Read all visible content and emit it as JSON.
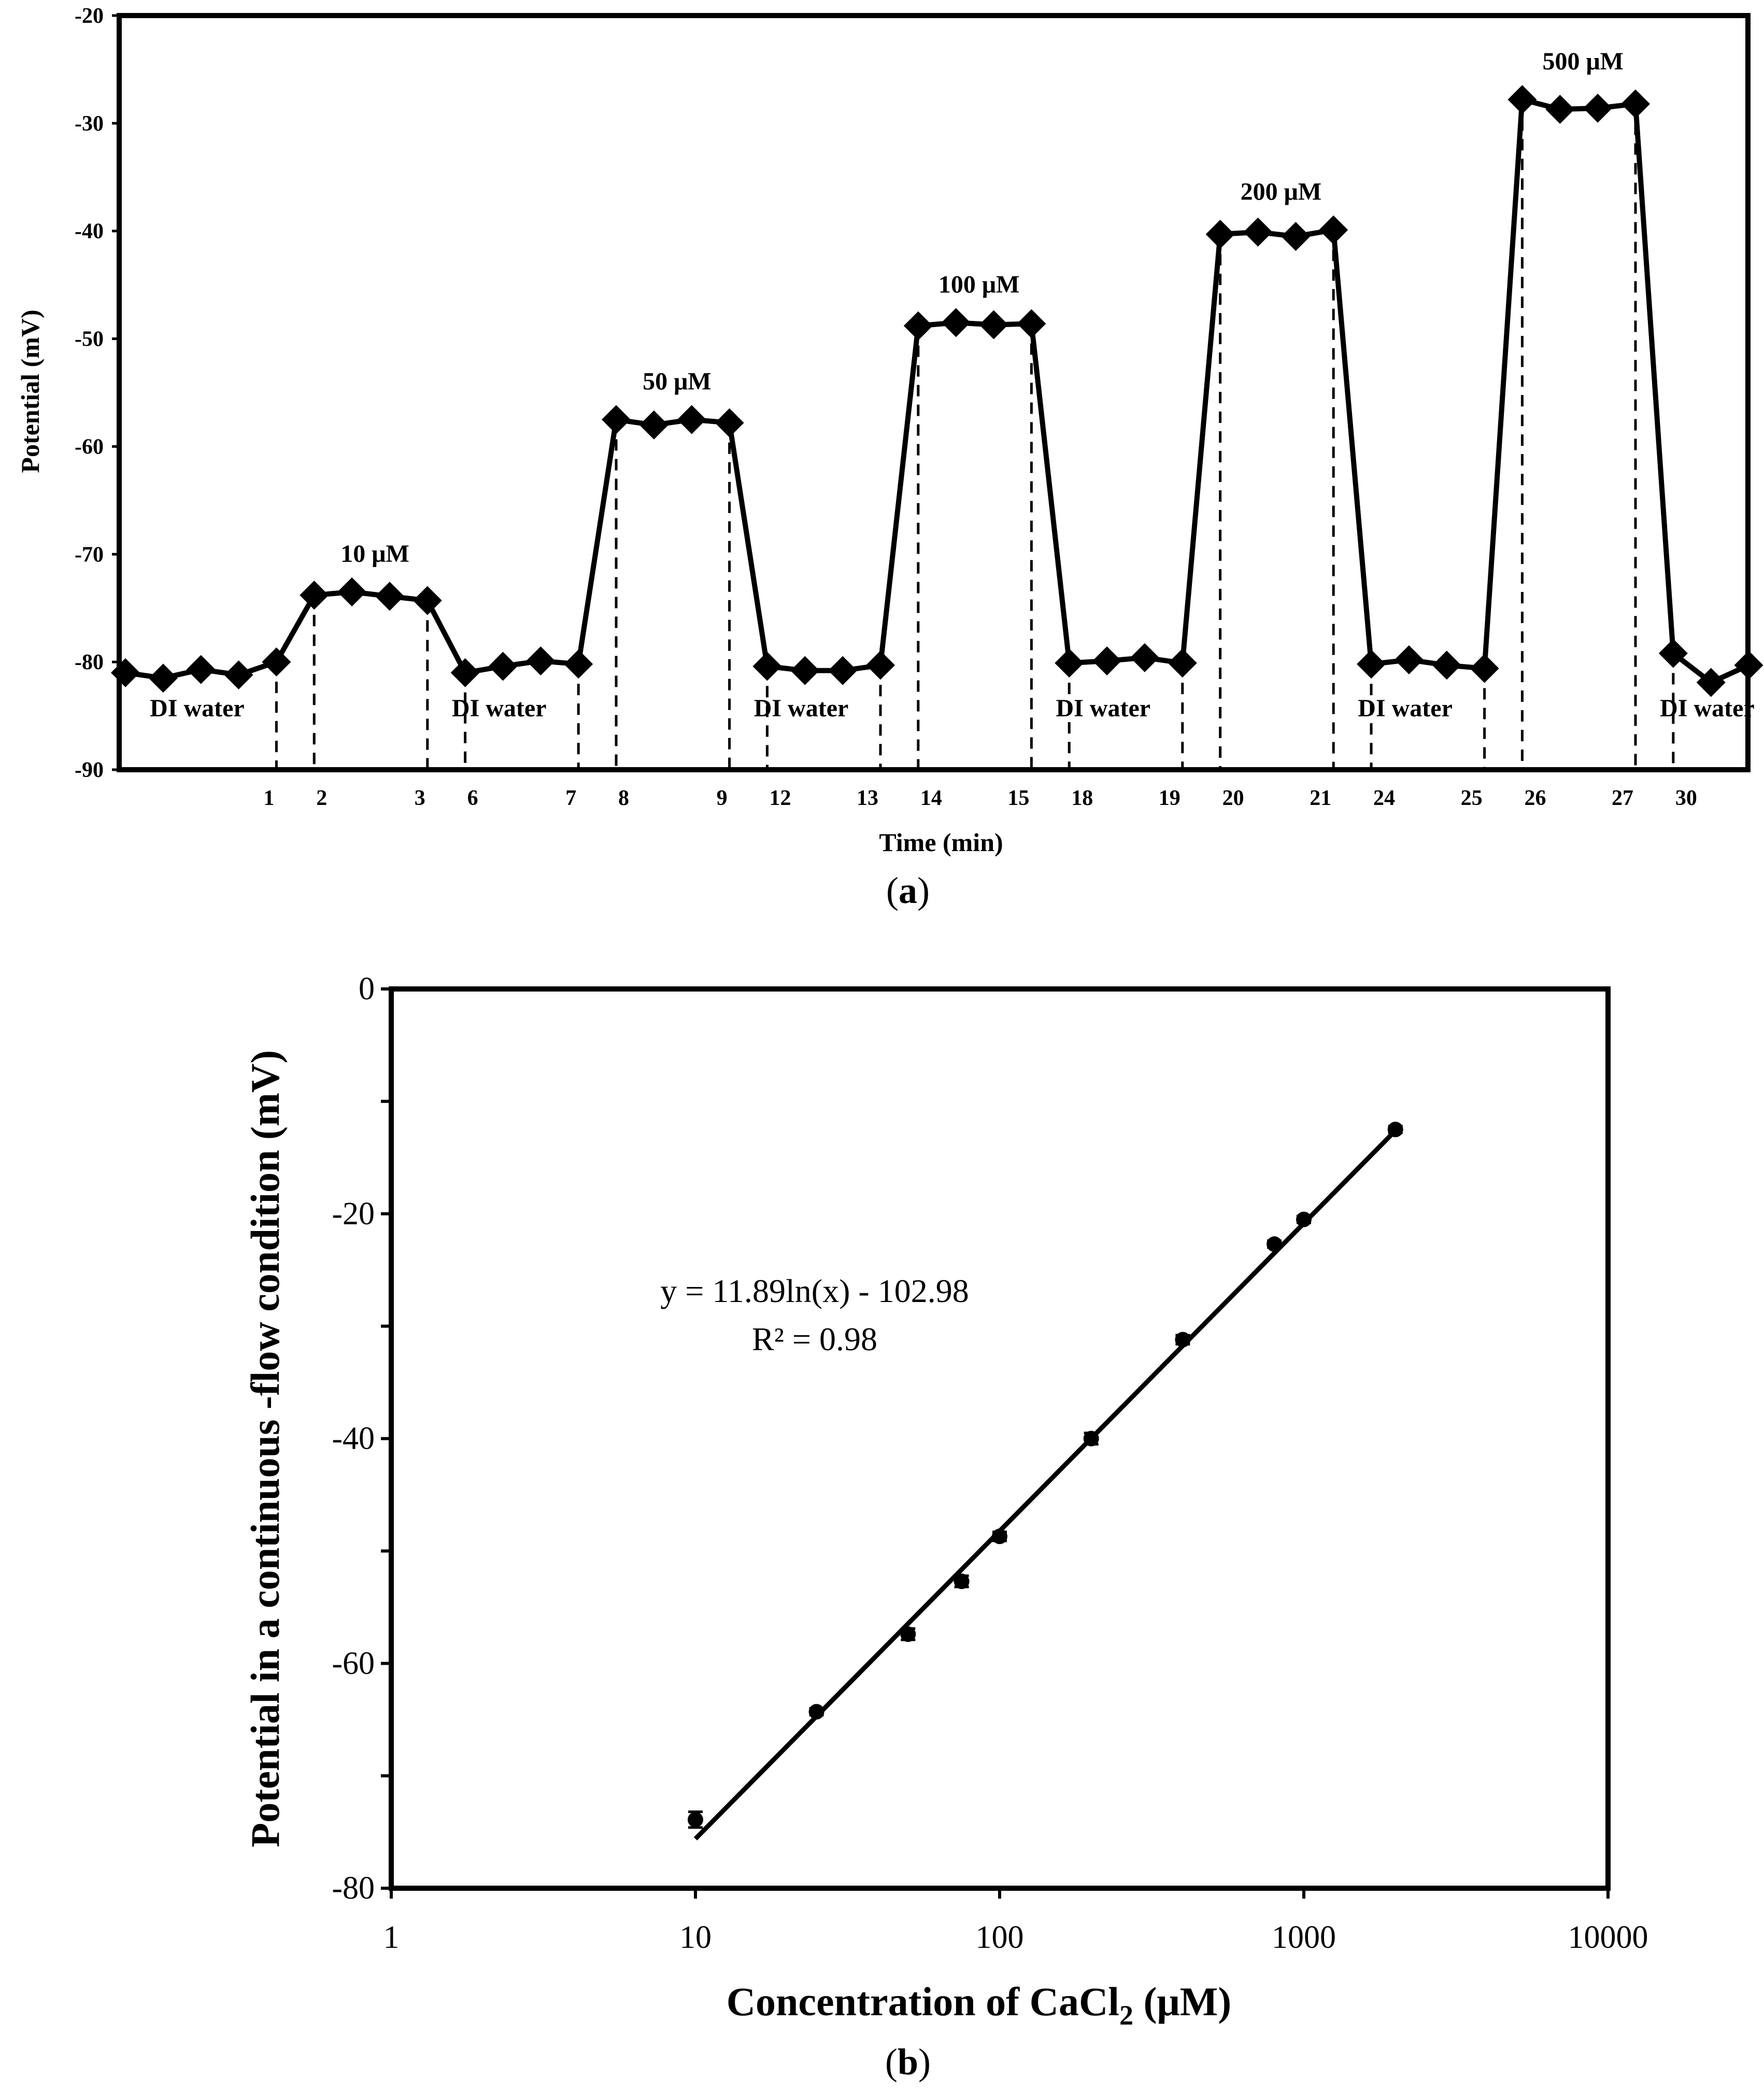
{
  "chart_data": [
    {
      "panel_label": "a",
      "type": "line",
      "title": "",
      "xlabel": "Time (min)",
      "ylabel": "Potential (mV)",
      "ylim": [
        -90,
        -20
      ],
      "yticks": [
        "-20",
        "-30",
        "-40",
        "-50",
        "-60",
        "-70",
        "-80",
        "-90"
      ],
      "xticks": [
        "1",
        "2",
        "3",
        "6",
        "7",
        "8",
        "9",
        "12",
        "13",
        "14",
        "15",
        "18",
        "19",
        "20",
        "21",
        "24",
        "25",
        "26",
        "27",
        "30"
      ],
      "grid": false,
      "series": [
        {
          "name": "Potential",
          "marker": "diamond",
          "values": [
            -81,
            -81.5,
            -80.7,
            -81.2,
            -80,
            -73.8,
            -73.5,
            -73.9,
            -74.3,
            -81,
            -80.4,
            -79.9,
            -80.2,
            -57.5,
            -58,
            -57.5,
            -57.8,
            -80.4,
            -80.8,
            -80.8,
            -80.3,
            -48.8,
            -48.5,
            -48.7,
            -48.6,
            -80.1,
            -79.9,
            -79.6,
            -80.1,
            -40.3,
            -40.1,
            -40.5,
            -39.9,
            -80.2,
            -79.8,
            -80.3,
            -80.6,
            -27.8,
            -28.7,
            -28.6,
            -28.2,
            -79.2,
            -81.9,
            -80.3
          ]
        }
      ],
      "annotations": [
        {
          "text": "10 μM",
          "at": 3.5
        },
        {
          "text": "50 μM",
          "at": 9.5
        },
        {
          "text": "100 μM",
          "at": 15.5
        },
        {
          "text": "200 μM",
          "at": 21.5
        },
        {
          "text": "500 μM",
          "at": 27.5
        }
      ],
      "segment_labels": [
        "DI water",
        "DI water",
        "DI water",
        "DI water",
        "DI water",
        "DI water"
      ]
    },
    {
      "panel_label": "b",
      "type": "scatter",
      "title": "",
      "xlabel": "Concentration of CaCl",
      "xlabel_sub": "2",
      "xlabel_unit": " (μM)",
      "ylabel": "Potential in a continuous -flow condition (mV)",
      "xscale": "log",
      "xlim": [
        1,
        10000
      ],
      "ylim": [
        -80,
        0
      ],
      "xticks": [
        "1",
        "10",
        "100",
        "1000",
        "10000"
      ],
      "yticks": [
        "0",
        "-20",
        "-40",
        "-60",
        "-80"
      ],
      "grid": false,
      "series": [
        {
          "name": "Measured potential",
          "x": [
            10,
            25,
            50,
            75,
            100,
            200,
            400,
            800,
            1000,
            2000
          ],
          "y": [
            -73.9,
            -64.3,
            -57.4,
            -52.7,
            -48.7,
            -40,
            -31.2,
            -22.7,
            -20.5,
            -12.5
          ],
          "error": [
            0.7,
            0.3,
            0.5,
            0.5,
            0.4,
            0.5,
            0.4,
            0.3,
            0.3,
            0.3
          ]
        }
      ],
      "fit": {
        "slope": 11.89,
        "intercept": -102.98,
        "x_from": 10,
        "x_to": 2000
      },
      "equation": "y = 11.89ln(x) - 102.98",
      "r2_label": "R² = 0.98"
    }
  ]
}
